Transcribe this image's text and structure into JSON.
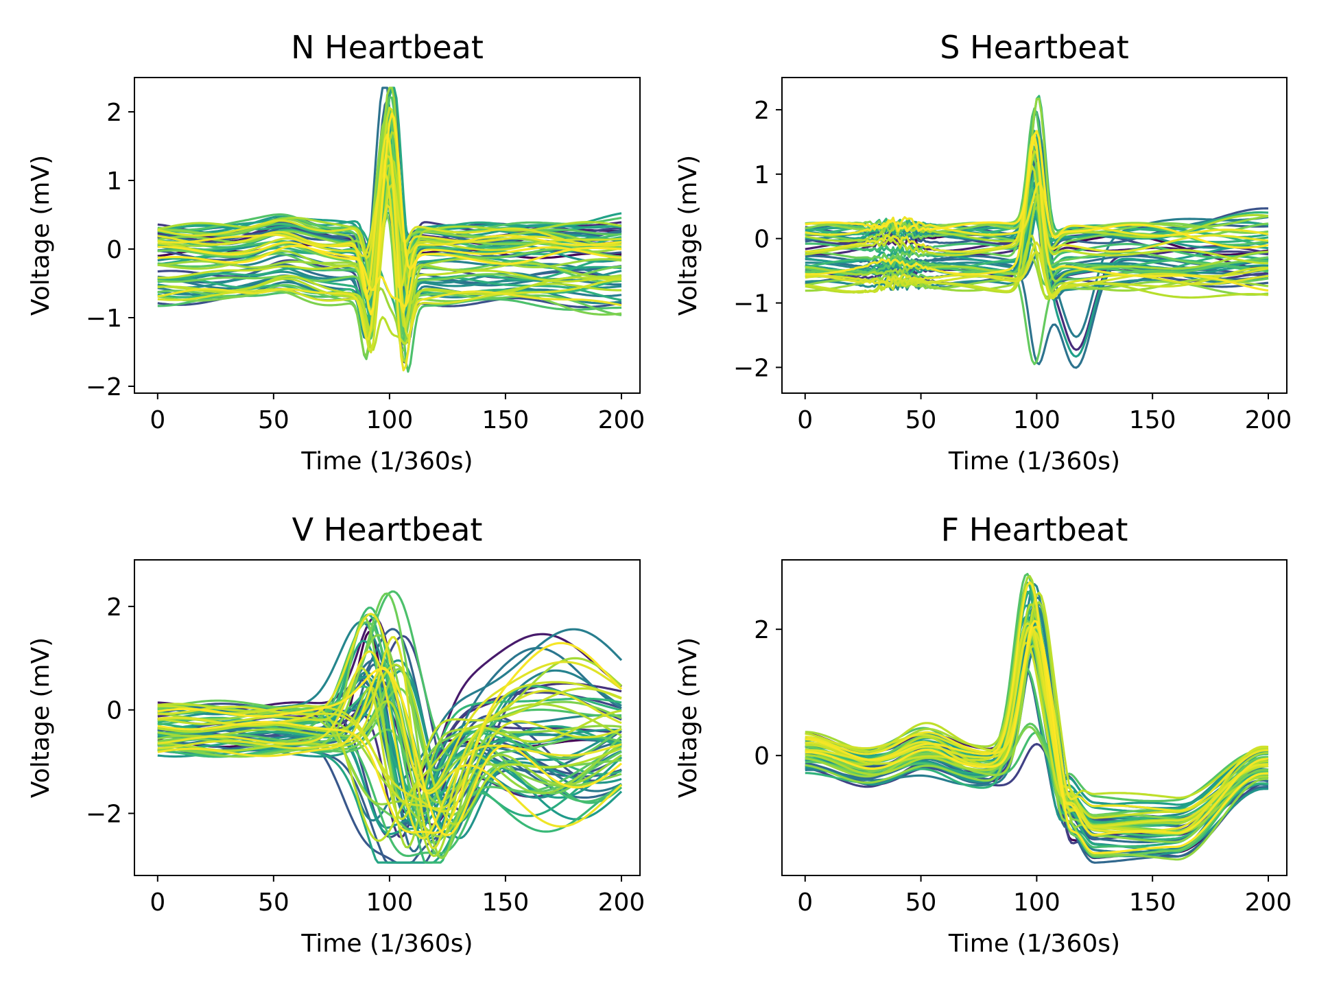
{
  "figure": {
    "background": "#ffffff",
    "colormap": "viridis"
  },
  "chart_data": [
    {
      "type": "line",
      "title": "N Heartbeat",
      "xlabel": "Time (1/360s)",
      "ylabel": "Voltage (mV)",
      "xlim": [
        -10,
        208
      ],
      "ylim": [
        -2.1,
        2.5
      ],
      "xticks": [
        0,
        50,
        100,
        150,
        200
      ],
      "xtick_labels": [
        "0",
        "50",
        "100",
        "150",
        "200"
      ],
      "yticks": [
        -2,
        -1,
        0,
        1,
        2
      ],
      "ytick_labels": [
        "−2",
        "−1",
        "0",
        "1",
        "2"
      ],
      "grid": false,
      "legend": false,
      "series_count": 60,
      "samples_per_series": 201,
      "series_colors": "viridis from #440154 to #fde725",
      "typical_waveform": {
        "x": [
          0,
          20,
          40,
          60,
          80,
          88,
          94,
          97,
          100,
          103,
          106,
          110,
          115,
          130,
          150,
          180,
          200
        ],
        "y": [
          -0.2,
          -0.25,
          -0.22,
          -0.2,
          -0.18,
          -0.2,
          0.8,
          1.8,
          2.3,
          1.5,
          0.2,
          -0.2,
          -0.25,
          -0.2,
          -0.2,
          -0.15,
          -0.2
        ]
      },
      "observed_range": {
        "baseline_min": -1.0,
        "baseline_max": 0.6,
        "peak_max": 2.3,
        "trough_min": -1.9
      }
    },
    {
      "type": "line",
      "title": "S Heartbeat",
      "xlabel": "Time (1/360s)",
      "ylabel": "Voltage (mV)",
      "xlim": [
        -10,
        208
      ],
      "ylim": [
        -2.4,
        2.5
      ],
      "xticks": [
        0,
        50,
        100,
        150,
        200
      ],
      "xtick_labels": [
        "0",
        "50",
        "100",
        "150",
        "200"
      ],
      "yticks": [
        -2,
        -1,
        0,
        1,
        2
      ],
      "ytick_labels": [
        "−2",
        "−1",
        "0",
        "1",
        "2"
      ],
      "grid": false,
      "legend": false,
      "series_count": 50,
      "samples_per_series": 201,
      "series_colors": "viridis from #440154 to #fde725",
      "typical_waveform": {
        "x": [
          0,
          20,
          40,
          60,
          80,
          90,
          95,
          100,
          104,
          108,
          115,
          130,
          150,
          180,
          200
        ],
        "y": [
          -0.2,
          -0.25,
          -0.2,
          -0.25,
          -0.3,
          -0.3,
          0.6,
          2.1,
          0.8,
          -0.4,
          -0.5,
          -0.3,
          -0.1,
          0.0,
          -0.1
        ]
      },
      "observed_range": {
        "baseline_min": -1.1,
        "baseline_max": 0.4,
        "peak_max": 2.3,
        "trough_min": -2.2
      }
    },
    {
      "type": "line",
      "title": "V Heartbeat",
      "xlabel": "Time (1/360s)",
      "ylabel": "Voltage (mV)",
      "xlim": [
        -10,
        208
      ],
      "ylim": [
        -3.2,
        2.9
      ],
      "xticks": [
        0,
        50,
        100,
        150,
        200
      ],
      "xtick_labels": [
        "0",
        "50",
        "100",
        "150",
        "200"
      ],
      "yticks": [
        -2,
        0,
        2
      ],
      "ytick_labels": [
        "−2",
        "0",
        "2"
      ],
      "grid": false,
      "legend": false,
      "series_count": 60,
      "samples_per_series": 201,
      "series_colors": "viridis from #440154 to #fde725",
      "typical_waveform": {
        "x": [
          0,
          20,
          40,
          60,
          75,
          85,
          92,
          100,
          108,
          115,
          125,
          140,
          160,
          180,
          200
        ],
        "y": [
          -0.3,
          -0.35,
          -0.3,
          -0.3,
          -0.1,
          0.8,
          1.8,
          1.5,
          0.0,
          -1.5,
          -1.0,
          -0.4,
          0.0,
          0.3,
          0.2
        ]
      },
      "observed_range": {
        "baseline_min": -1.2,
        "baseline_max": 0.7,
        "peak_max": 2.6,
        "trough_min": -2.9
      }
    },
    {
      "type": "line",
      "title": "F Heartbeat",
      "xlabel": "Time (1/360s)",
      "ylabel": "Voltage (mV)",
      "xlim": [
        -10,
        208
      ],
      "ylim": [
        -1.9,
        3.1
      ],
      "xticks": [
        0,
        50,
        100,
        150,
        200
      ],
      "xtick_labels": [
        "0",
        "50",
        "100",
        "150",
        "200"
      ],
      "yticks": [
        0,
        2
      ],
      "ytick_labels": [
        "0",
        "2"
      ],
      "grid": false,
      "legend": false,
      "series_count": 50,
      "samples_per_series": 201,
      "series_colors": "viridis from #440154 to #fde725",
      "typical_waveform": {
        "x": [
          0,
          20,
          40,
          55,
          70,
          85,
          92,
          100,
          108,
          115,
          125,
          140,
          150,
          170,
          190,
          200
        ],
        "y": [
          0.1,
          -0.2,
          -0.25,
          -0.05,
          -0.3,
          0.0,
          1.0,
          2.5,
          1.2,
          -0.4,
          -0.9,
          -1.2,
          -1.3,
          -0.9,
          -0.2,
          0.1
        ]
      },
      "observed_range": {
        "baseline_min": -0.9,
        "baseline_max": 0.5,
        "peak_max": 2.9,
        "trough_min": -1.75
      }
    }
  ]
}
